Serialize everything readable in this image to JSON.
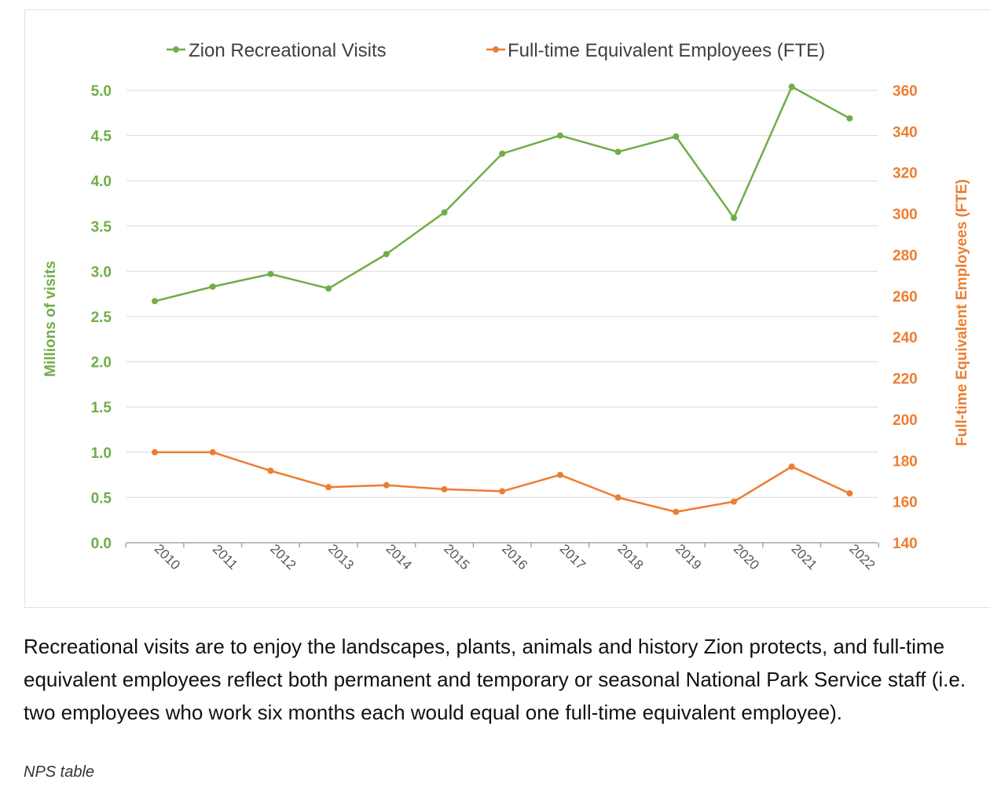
{
  "chart_data": {
    "type": "line",
    "categories": [
      "2010",
      "2011",
      "2012",
      "2013",
      "2014",
      "2015",
      "2016",
      "2017",
      "2018",
      "2019",
      "2020",
      "2021",
      "2022"
    ],
    "series": [
      {
        "name": "Zion Recreational Visits",
        "axis": "left",
        "color": "#70ad47",
        "values": [
          2.67,
          2.83,
          2.97,
          2.81,
          3.19,
          3.65,
          4.3,
          4.5,
          4.32,
          4.49,
          3.59,
          5.04,
          4.69
        ]
      },
      {
        "name": "Full-time Equivalent Employees (FTE)",
        "axis": "right",
        "color": "#ed7d31",
        "values": [
          184,
          184,
          175,
          167,
          168,
          166,
          165,
          173,
          162,
          155,
          160,
          177,
          164
        ]
      }
    ],
    "y_left": {
      "label": "Millions of visits",
      "min": 0,
      "max": 5.0,
      "step": 0.5,
      "ticks": [
        "0.0",
        "0.5",
        "1.0",
        "1.5",
        "2.0",
        "2.5",
        "3.0",
        "3.5",
        "4.0",
        "4.5",
        "5.0"
      ],
      "color": "#70ad47"
    },
    "y_right": {
      "label": "Full-time Equivalent Employees (FTE)",
      "min": 140,
      "max": 360,
      "step": 20,
      "ticks": [
        "140",
        "160",
        "180",
        "200",
        "220",
        "240",
        "260",
        "280",
        "300",
        "320",
        "340",
        "360"
      ],
      "color": "#ed7d31"
    },
    "grid": true,
    "legend": "top-center"
  },
  "caption": "Recreational visits are to enjoy the landscapes, plants, animals and history Zion protects, and full-time equivalent employees reflect both permanent and temporary or seasonal National Park Service staff (i.e. two employees who work six months each would equal one full-time equivalent employee).",
  "source": "NPS table"
}
